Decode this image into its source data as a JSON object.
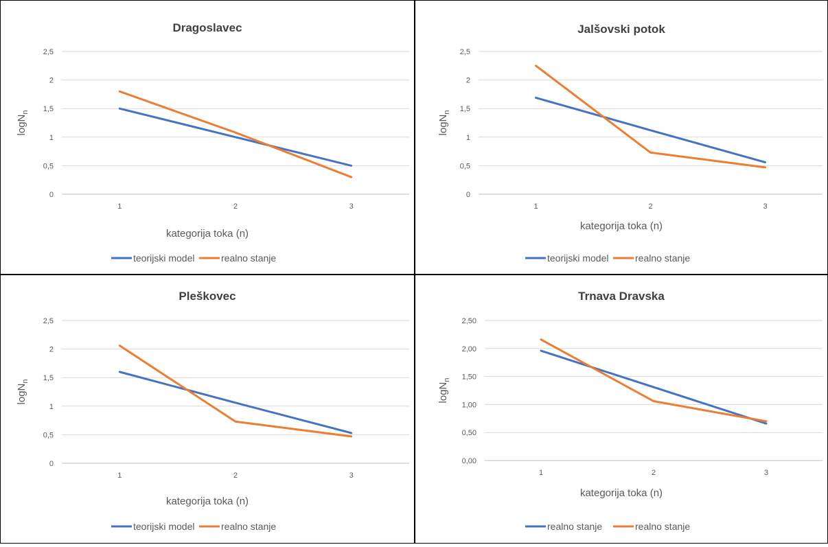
{
  "colors": {
    "series1": "#4472c4",
    "series2": "#ed7d31",
    "grid": "#d9d9d9",
    "axis": "#bfbfbf",
    "text": "#595959",
    "title": "#404040"
  },
  "chart_data": [
    {
      "type": "line",
      "title": "Dragoslavec",
      "xlabel": "kategorija toka (n)",
      "ylabel_main": "logN",
      "ylabel_sub": "n",
      "categories": [
        "1",
        "2",
        "3"
      ],
      "ylim": [
        0,
        2.5
      ],
      "yticks": [
        "0",
        "0,5",
        "1",
        "1,5",
        "2",
        "2,5"
      ],
      "grid": true,
      "legend_position": "bottom",
      "series": [
        {
          "name": "teorijski model",
          "values": [
            1.5,
            1.0,
            0.5
          ]
        },
        {
          "name": "realno stanje",
          "values": [
            1.8,
            1.08,
            0.3
          ]
        }
      ]
    },
    {
      "type": "line",
      "title": "Jalšovski potok",
      "xlabel": "kategorija toka (n)",
      "ylabel_main": "logN",
      "ylabel_sub": "n",
      "categories": [
        "1",
        "2",
        "3"
      ],
      "ylim": [
        0,
        2.5
      ],
      "yticks": [
        "0",
        "0,5",
        "1",
        "1,5",
        "2",
        "2,5"
      ],
      "grid": true,
      "legend_position": "bottom",
      "series": [
        {
          "name": "teorijski model",
          "values": [
            1.69,
            1.12,
            0.56
          ]
        },
        {
          "name": "realno stanje",
          "values": [
            2.25,
            0.73,
            0.47
          ]
        }
      ]
    },
    {
      "type": "line",
      "title": "Pleškovec",
      "xlabel": "kategorija toka (n)",
      "ylabel_main": "logN",
      "ylabel_sub": "n",
      "categories": [
        "1",
        "2",
        "3"
      ],
      "ylim": [
        0,
        2.5
      ],
      "yticks": [
        "0",
        "0,5",
        "1",
        "1,5",
        "2",
        "2,5"
      ],
      "grid": true,
      "legend_position": "bottom",
      "series": [
        {
          "name": "teorijski model",
          "values": [
            1.6,
            1.06,
            0.53
          ]
        },
        {
          "name": "realno stanje",
          "values": [
            2.06,
            0.73,
            0.47
          ]
        }
      ]
    },
    {
      "type": "line",
      "title": "Trnava Dravska",
      "xlabel": "kategorija toka (n)",
      "ylabel_main": "logN",
      "ylabel_sub": "n",
      "categories": [
        "1",
        "2",
        "3"
      ],
      "ylim": [
        0,
        2.5
      ],
      "yticks": [
        "0,00",
        "0,50",
        "1,00",
        "1,50",
        "2,00",
        "2,50"
      ],
      "grid": true,
      "legend_position": "bottom",
      "series": [
        {
          "name": "realno stanje",
          "values": [
            1.96,
            1.31,
            0.66
          ]
        },
        {
          "name": "realno stanje",
          "values": [
            2.16,
            1.06,
            0.7
          ]
        }
      ]
    }
  ]
}
